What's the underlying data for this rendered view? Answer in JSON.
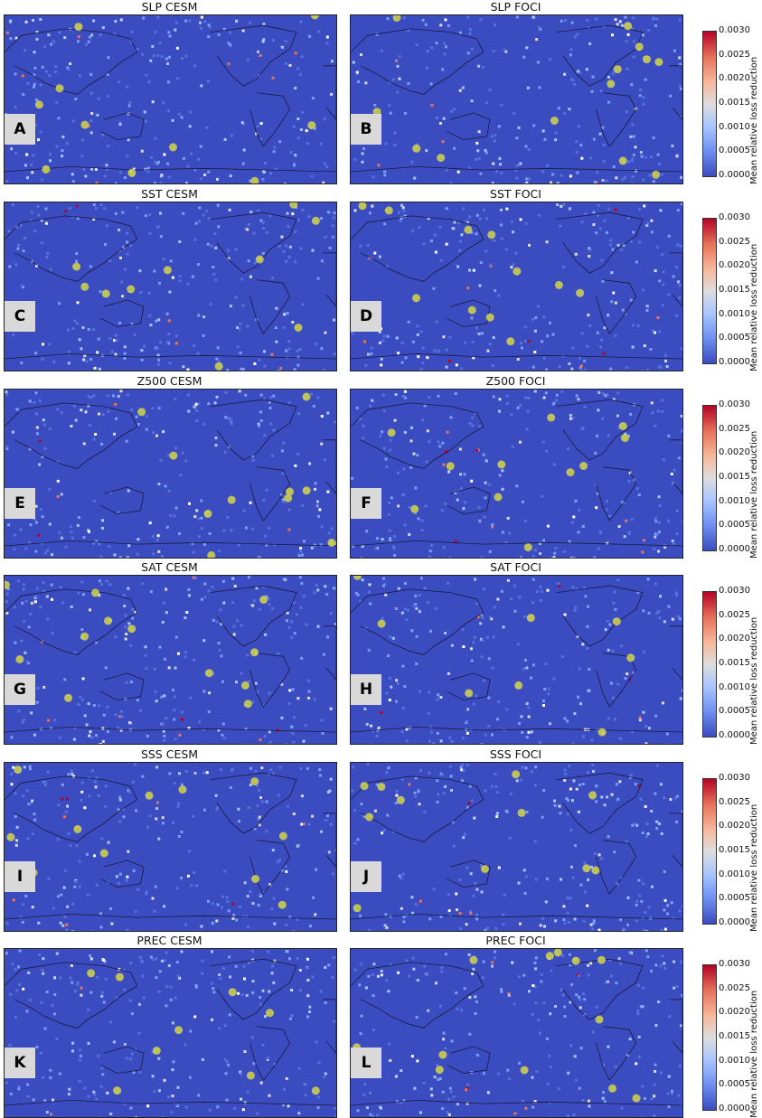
{
  "chart_data": [
    {
      "type": "heatmap",
      "panel": "A",
      "title": "SLP CESM",
      "colorbar": {
        "label": "Mean relative loss reduction",
        "range": [
          0,
          0.003
        ],
        "ticks": [
          "0.0000",
          "0.0005",
          "0.0010",
          "0.0015",
          "0.0020",
          "0.0025",
          "0.0030"
        ]
      }
    },
    {
      "type": "heatmap",
      "panel": "B",
      "title": "SLP FOCI"
    },
    {
      "type": "heatmap",
      "panel": "C",
      "title": "SST CESM",
      "colorbar": {
        "label": "Mean relative loss reduction",
        "range": [
          0,
          0.003
        ],
        "ticks": [
          "0.0000",
          "0.0005",
          "0.0010",
          "0.0015",
          "0.0020",
          "0.0025",
          "0.0030"
        ]
      }
    },
    {
      "type": "heatmap",
      "panel": "D",
      "title": "SST FOCI"
    },
    {
      "type": "heatmap",
      "panel": "E",
      "title": "Z500 CESM",
      "colorbar": {
        "label": "Mean relative loss reduction",
        "range": [
          0,
          0.003
        ],
        "ticks": [
          "0.0000",
          "0.0005",
          "0.0010",
          "0.0015",
          "0.0020",
          "0.0025",
          "0.0030"
        ]
      }
    },
    {
      "type": "heatmap",
      "panel": "F",
      "title": "Z500 FOCI"
    },
    {
      "type": "heatmap",
      "panel": "G",
      "title": "SAT CESM",
      "colorbar": {
        "label": "Mean relative loss reduction",
        "range": [
          0,
          0.003
        ],
        "ticks": [
          "0.0000",
          "0.0005",
          "0.0010",
          "0.0015",
          "0.0020",
          "0.0025",
          "0.0030"
        ]
      }
    },
    {
      "type": "heatmap",
      "panel": "H",
      "title": "SAT FOCI"
    },
    {
      "type": "heatmap",
      "panel": "I",
      "title": "SSS CESM",
      "colorbar": {
        "label": "Mean relative loss reduction",
        "range": [
          0,
          0.003
        ],
        "ticks": [
          "0.0000",
          "0.0005",
          "0.0010",
          "0.0015",
          "0.0020",
          "0.0025",
          "0.0030"
        ]
      }
    },
    {
      "type": "heatmap",
      "panel": "J",
      "title": "SSS FOCI"
    },
    {
      "type": "heatmap",
      "panel": "K",
      "title": "PREC CESM",
      "colorbar": {
        "label": "Mean relative loss reduction",
        "range": [
          0,
          0.003
        ],
        "ticks": [
          "0.0000",
          "0.0005",
          "0.0010",
          "0.0015",
          "0.0020",
          "0.0025",
          "0.0030"
        ]
      }
    },
    {
      "type": "heatmap",
      "panel": "L",
      "title": "PREC FOCI"
    }
  ],
  "colors": {
    "low": "#3b4cc0",
    "mid": "#dddddd",
    "high": "#b40426",
    "marker": "#d4d64a"
  }
}
